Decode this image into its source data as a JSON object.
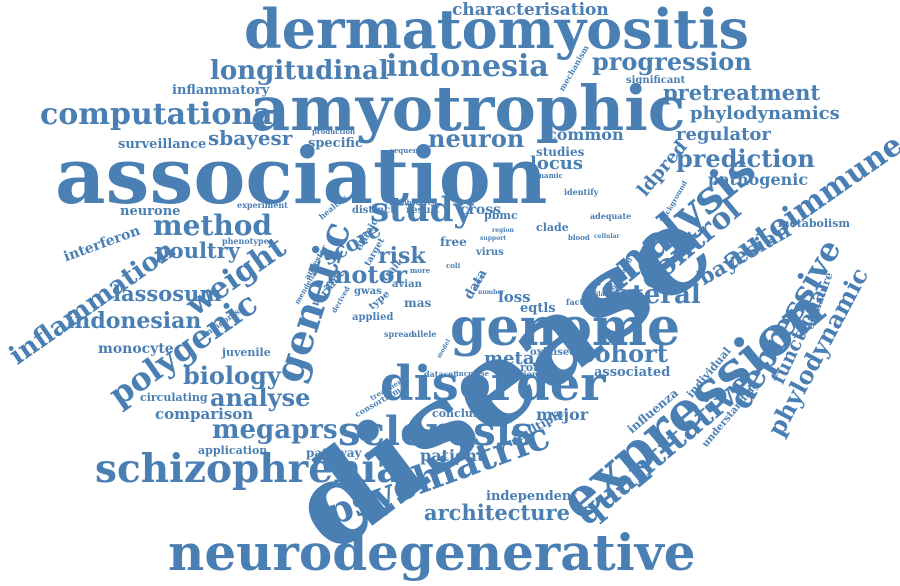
{
  "colors": {
    "word": "#4a7fb3",
    "background": "#ffffff"
  },
  "words": [
    {
      "text": "disease"
    },
    {
      "text": "association"
    },
    {
      "text": "amyotrophic"
    },
    {
      "text": "dermatomyositis"
    },
    {
      "text": "neurodegenerative"
    },
    {
      "text": "expression"
    },
    {
      "text": "genome"
    },
    {
      "text": "disorder"
    },
    {
      "text": "schizophrenia"
    },
    {
      "text": "psychiatric"
    },
    {
      "text": "analysis"
    },
    {
      "text": "sclerosis"
    },
    {
      "text": "genetic"
    },
    {
      "text": "study"
    },
    {
      "text": "computational"
    },
    {
      "text": "longitudinal"
    },
    {
      "text": "indonesia"
    },
    {
      "text": "progression"
    },
    {
      "text": "polygenic"
    },
    {
      "text": "quantitative"
    },
    {
      "text": "depressive"
    },
    {
      "text": "autoimmune"
    },
    {
      "text": "control"
    },
    {
      "text": "method"
    },
    {
      "text": "weight"
    },
    {
      "text": "inflammation"
    },
    {
      "text": "characterisation"
    },
    {
      "text": "phylodynamic"
    },
    {
      "text": "lateral"
    },
    {
      "text": "cohort"
    },
    {
      "text": "megaprs"
    },
    {
      "text": "architecture"
    },
    {
      "text": "biology"
    },
    {
      "text": "analyse"
    },
    {
      "text": "prediction"
    },
    {
      "text": "neuron"
    },
    {
      "text": "indonesian"
    },
    {
      "text": "lassosum"
    },
    {
      "text": "poultry"
    },
    {
      "text": "pretreatment"
    },
    {
      "text": "phylodynamics"
    },
    {
      "text": "regulator"
    },
    {
      "text": "bayesian"
    },
    {
      "text": "functional"
    },
    {
      "text": "sbayesr"
    },
    {
      "text": "common"
    },
    {
      "text": "motor"
    },
    {
      "text": "risk"
    },
    {
      "text": "score"
    },
    {
      "text": "patient"
    },
    {
      "text": "major"
    },
    {
      "text": "pathogenic"
    },
    {
      "text": "ldpred"
    },
    {
      "text": "locus"
    },
    {
      "text": "studies"
    },
    {
      "text": "meta"
    },
    {
      "text": "loss"
    },
    {
      "text": "associated"
    },
    {
      "text": "comparison"
    },
    {
      "text": "surveillance"
    },
    {
      "text": "specific"
    },
    {
      "text": "inflammatory"
    },
    {
      "text": "interferon"
    },
    {
      "text": "neurone"
    },
    {
      "text": "monocyte"
    },
    {
      "text": "circulating"
    },
    {
      "text": "juvenile"
    },
    {
      "text": "application"
    },
    {
      "text": "pathway"
    },
    {
      "text": "conclusion"
    },
    {
      "text": "independent"
    },
    {
      "text": "multiple"
    },
    {
      "text": "influenza"
    },
    {
      "text": "individual"
    },
    {
      "text": "metabolism"
    },
    {
      "text": "signature"
    },
    {
      "text": "understanding"
    },
    {
      "text": "significant"
    },
    {
      "text": "mechanism"
    },
    {
      "text": "cross"
    },
    {
      "text": "data"
    },
    {
      "text": "mas"
    },
    {
      "text": "gwas"
    },
    {
      "text": "avian"
    },
    {
      "text": "applied"
    },
    {
      "text": "type"
    },
    {
      "text": "variant"
    },
    {
      "text": "ethnic"
    },
    {
      "text": "target"
    },
    {
      "text": "trait"
    },
    {
      "text": "free"
    },
    {
      "text": "virus"
    },
    {
      "text": "clade"
    },
    {
      "text": "pbmc"
    },
    {
      "text": "result"
    },
    {
      "text": "distinct"
    },
    {
      "text": "healthy"
    },
    {
      "text": "experiment"
    },
    {
      "text": "ancestor"
    },
    {
      "text": "phenotype"
    },
    {
      "text": "antagonist"
    },
    {
      "text": "role"
    },
    {
      "text": "eqtls"
    },
    {
      "text": "oxidised"
    },
    {
      "text": "dataset"
    },
    {
      "text": "evolution"
    },
    {
      "text": "spread"
    },
    {
      "text": "allele"
    },
    {
      "text": "consortium"
    },
    {
      "text": "treatment"
    },
    {
      "text": "factor"
    },
    {
      "text": "adequate"
    },
    {
      "text": "identify"
    },
    {
      "text": "dynamic"
    },
    {
      "text": "sequence"
    },
    {
      "text": "production"
    },
    {
      "text": "observed"
    },
    {
      "text": "cellular"
    },
    {
      "text": "blood"
    },
    {
      "text": "region"
    },
    {
      "text": "background"
    },
    {
      "text": "correlated"
    },
    {
      "text": "mendelian"
    },
    {
      "text": "derived"
    },
    {
      "text": "more"
    },
    {
      "text": "coli"
    },
    {
      "text": "rare"
    },
    {
      "text": "increase"
    },
    {
      "text": "model"
    },
    {
      "text": "number"
    },
    {
      "text": "similar"
    },
    {
      "text": "support"
    }
  ]
}
